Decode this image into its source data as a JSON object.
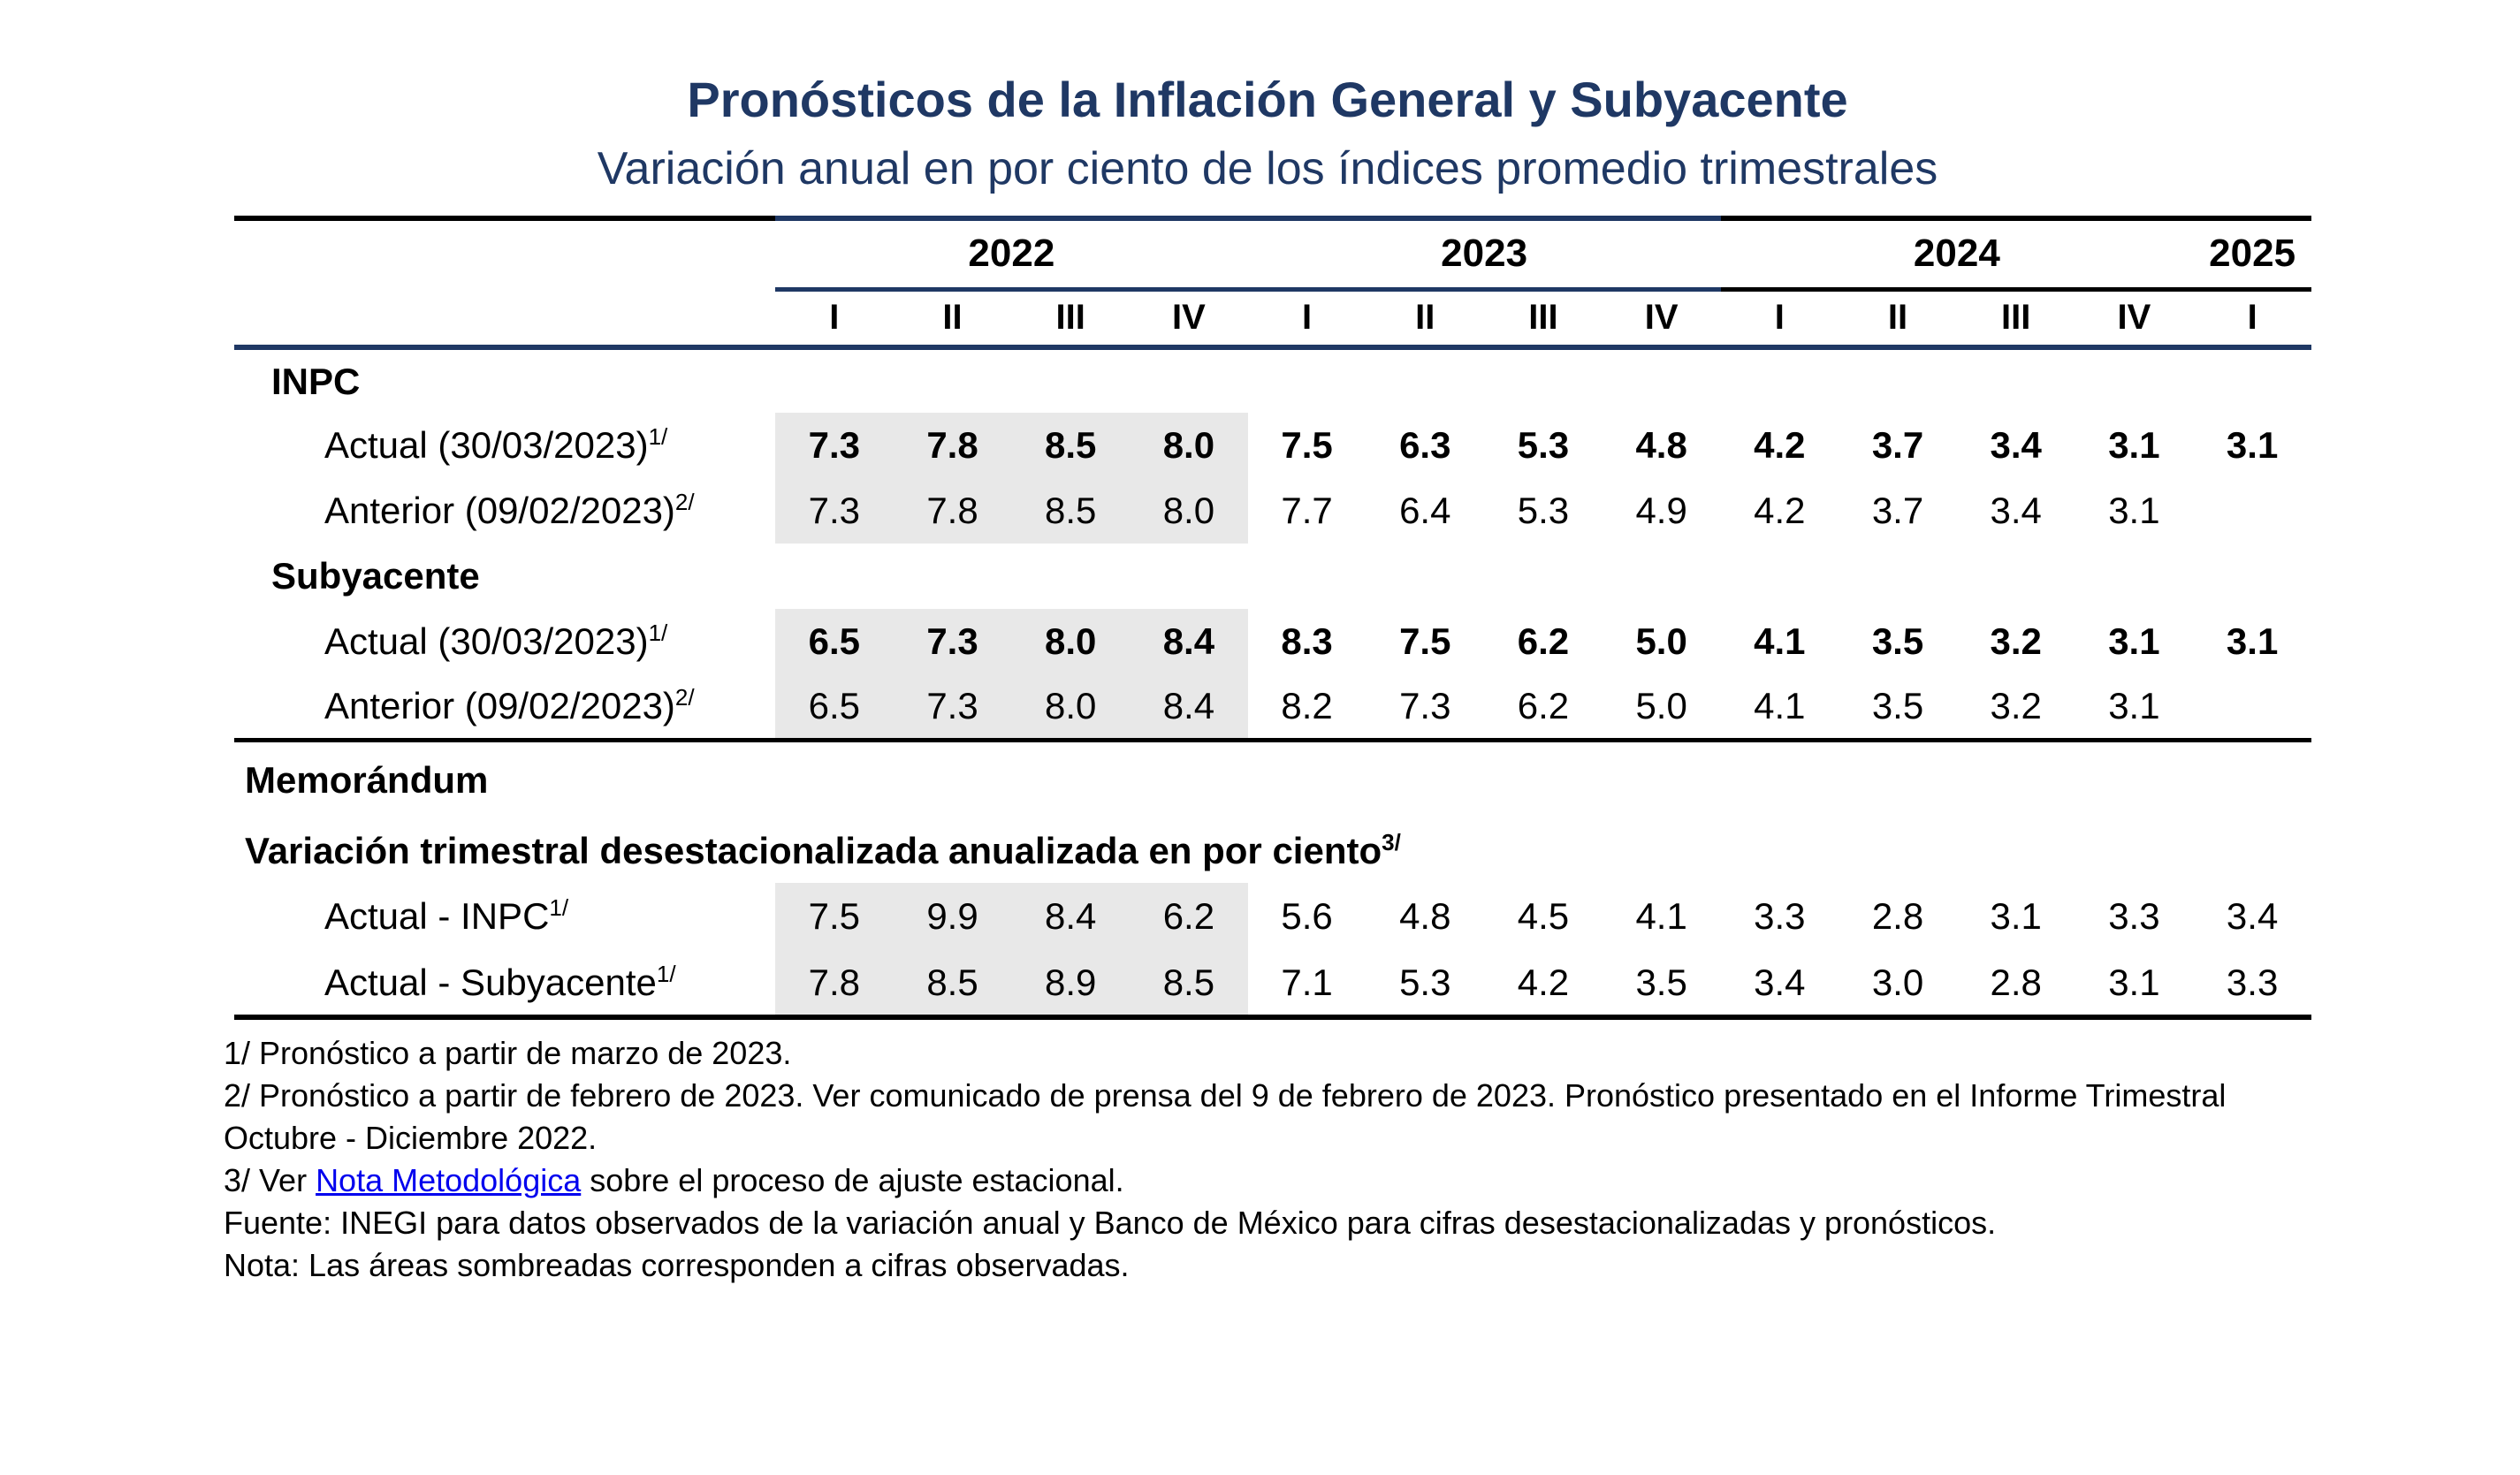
{
  "title": "Pronósticos de la Inflación General y Subyacente",
  "subtitle": "Variación anual en por ciento de los índices promedio trimestrales",
  "table": {
    "years": [
      {
        "label": "2022",
        "span": 4
      },
      {
        "label": "2023",
        "span": 4
      },
      {
        "label": "2024",
        "span": 4
      },
      {
        "label": "2025",
        "span": 1
      }
    ],
    "quarters": [
      "I",
      "II",
      "III",
      "IV",
      "I",
      "II",
      "III",
      "IV",
      "I",
      "II",
      "III",
      "IV",
      "I"
    ],
    "shaded_columns_note": "first 4 columns (2022) shaded on data rows",
    "rows": [
      {
        "type": "section",
        "label": "INPC"
      },
      {
        "type": "data",
        "label": "Actual (30/03/2023)",
        "sup": "1/",
        "bold_values": true,
        "values": [
          "7.3",
          "7.8",
          "8.5",
          "8.0",
          "7.5",
          "6.3",
          "5.3",
          "4.8",
          "4.2",
          "3.7",
          "3.4",
          "3.1",
          "3.1"
        ]
      },
      {
        "type": "data",
        "label": "Anterior (09/02/2023)",
        "sup": "2/",
        "bold_values": false,
        "values": [
          "7.3",
          "7.8",
          "8.5",
          "8.0",
          "7.7",
          "6.4",
          "5.3",
          "4.9",
          "4.2",
          "3.7",
          "3.4",
          "3.1",
          ""
        ]
      },
      {
        "type": "section",
        "label": "Subyacente"
      },
      {
        "type": "data",
        "label": "Actual (30/03/2023)",
        "sup": "1/",
        "bold_values": true,
        "values": [
          "6.5",
          "7.3",
          "8.0",
          "8.4",
          "8.3",
          "7.5",
          "6.2",
          "5.0",
          "4.1",
          "3.5",
          "3.2",
          "3.1",
          "3.1"
        ]
      },
      {
        "type": "data",
        "label": "Anterior (09/02/2023)",
        "sup": "2/",
        "bold_values": false,
        "values": [
          "6.5",
          "7.3",
          "8.0",
          "8.4",
          "8.2",
          "7.3",
          "6.2",
          "5.0",
          "4.1",
          "3.5",
          "3.2",
          "3.1",
          ""
        ]
      },
      {
        "type": "memo-title",
        "label": "Memorándum",
        "rule_above": true
      },
      {
        "type": "memo-title",
        "label": "Variación trimestral desestacionalizada anualizada en por ciento",
        "sup": "3/"
      },
      {
        "type": "data",
        "memo": true,
        "label": "Actual - INPC",
        "sup": "1/",
        "bold_values": false,
        "values": [
          "7.5",
          "9.9",
          "8.4",
          "6.2",
          "5.6",
          "4.8",
          "4.5",
          "4.1",
          "3.3",
          "2.8",
          "3.1",
          "3.3",
          "3.4"
        ]
      },
      {
        "type": "data",
        "memo": true,
        "label": "Actual - Subyacente",
        "sup": "1/",
        "bold_values": false,
        "values": [
          "7.8",
          "8.5",
          "8.9",
          "8.5",
          "7.1",
          "5.3",
          "4.2",
          "3.5",
          "3.4",
          "3.0",
          "2.8",
          "3.1",
          "3.3"
        ]
      }
    ]
  },
  "footnotes": {
    "f1": "1/ Pronóstico a partir de marzo de 2023.",
    "f2": "2/ Pronóstico a partir de febrero de 2023. Ver comunicado de prensa del 9 de febrero de 2023. Pronóstico presentado en el Informe Trimestral Octubre - Diciembre 2022.",
    "f3_before": "3/ Ver ",
    "f3_link": "Nota Metodológica",
    "f3_after": " sobre el proceso de ajuste estacional.",
    "source": "Fuente: INEGI para datos observados de la variación anual y Banco de México para cifras desestacionalizadas y pronósticos.",
    "note": "Nota: Las áreas sombreadas corresponden a cifras observadas."
  },
  "colors": {
    "navy": "#1F3864",
    "shaded_gray": "#E8E8E8",
    "link_blue": "#0000EE",
    "line_black": "#000000"
  }
}
